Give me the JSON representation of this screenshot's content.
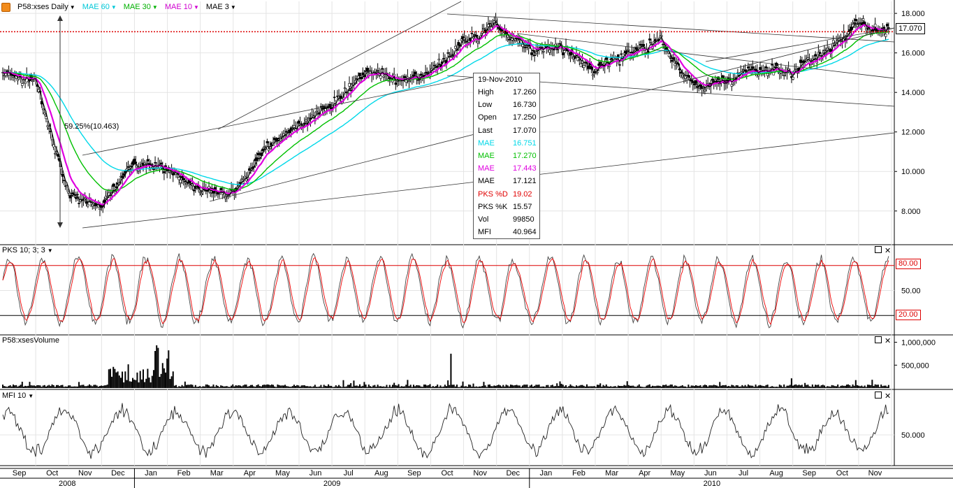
{
  "header": {
    "symbol_label": "P58:xses Daily",
    "mae60_label": "MAE 60",
    "mae30_label": "MAE 30",
    "mae10_label": "MAE 10",
    "mae3_label": "MAE 3"
  },
  "tooltip": {
    "date": "19-Nov-2010",
    "rows": [
      {
        "k": "High",
        "v": "17.260",
        "color": "#000000"
      },
      {
        "k": "Low",
        "v": "16.730",
        "color": "#000000"
      },
      {
        "k": "Open",
        "v": "17.250",
        "color": "#000000"
      },
      {
        "k": "Last",
        "v": "17.070",
        "color": "#000000"
      },
      {
        "k": "MAE",
        "v": "16.751",
        "color": "#00d8e8"
      },
      {
        "k": "MAE",
        "v": "17.270",
        "color": "#00c000"
      },
      {
        "k": "MAE",
        "v": "17.443",
        "color": "#e000e0"
      },
      {
        "k": "MAE",
        "v": "17.121",
        "color": "#000000"
      },
      {
        "k": "PKS %D",
        "v": "19.02",
        "color": "#e00000"
      },
      {
        "k": "PKS %K",
        "v": "15.57",
        "color": "#000000"
      },
      {
        "k": "Vol",
        "v": "99850",
        "color": "#000000"
      },
      {
        "k": "MFI",
        "v": "40.964",
        "color": "#000000"
      }
    ]
  },
  "annotation": {
    "pct_change": "59.25%(10.463)"
  },
  "price_label": "17.070",
  "panels": {
    "pks_title": "PKS 10; 3; 3",
    "vol_title": "P58:xsesVolume",
    "mfi_title": "MFI 10"
  },
  "stoch_levels": {
    "upper": "80.00",
    "lower": "20.00"
  },
  "chart_data": {
    "type": "line",
    "title": "P58:xses Daily",
    "price_axis": {
      "ticks": [
        "18.000",
        "16.000",
        "14.000",
        "12.000",
        "10.000",
        "8.000"
      ],
      "ylim": [
        6.4,
        18.5
      ]
    },
    "pks_axis": {
      "ticks": [
        "80.00",
        "50.00",
        "20.00"
      ],
      "ylim": [
        0,
        100
      ]
    },
    "volume_axis": {
      "ticks": [
        "1,000,000",
        "500,000"
      ]
    },
    "mfi_axis": {
      "ticks": [
        "50.000"
      ]
    },
    "x_months": [
      "Sep",
      "Oct",
      "Nov",
      "Dec",
      "Jan",
      "Feb",
      "Mar",
      "Apr",
      "May",
      "Jun",
      "Jul",
      "Aug",
      "Sep",
      "Oct",
      "Nov",
      "Dec",
      "Jan",
      "Feb",
      "Mar",
      "Apr",
      "May",
      "Jun",
      "Jul",
      "Aug",
      "Sep",
      "Oct",
      "Nov"
    ],
    "x_years": [
      "2008",
      "2009",
      "2010"
    ],
    "price_monthly_close": [
      14.6,
      8.8,
      8.3,
      10.4,
      10.2,
      9.0,
      8.9,
      11.2,
      12.3,
      13.3,
      15.1,
      14.7,
      14.9,
      16.6,
      17.4,
      16.2,
      16.3,
      15.1,
      16.0,
      16.6,
      14.3,
      14.6,
      15.2,
      15.0,
      16.0,
      17.5,
      17.07
    ],
    "last_price": 17.07,
    "series": [
      {
        "name": "MAE 60",
        "color": "#00d8e8"
      },
      {
        "name": "MAE 30",
        "color": "#00c000"
      },
      {
        "name": "MAE 10",
        "color": "#e000e0"
      },
      {
        "name": "MAE 3",
        "color": "#000000"
      }
    ],
    "volume_peak": 1000000,
    "grid": true
  }
}
